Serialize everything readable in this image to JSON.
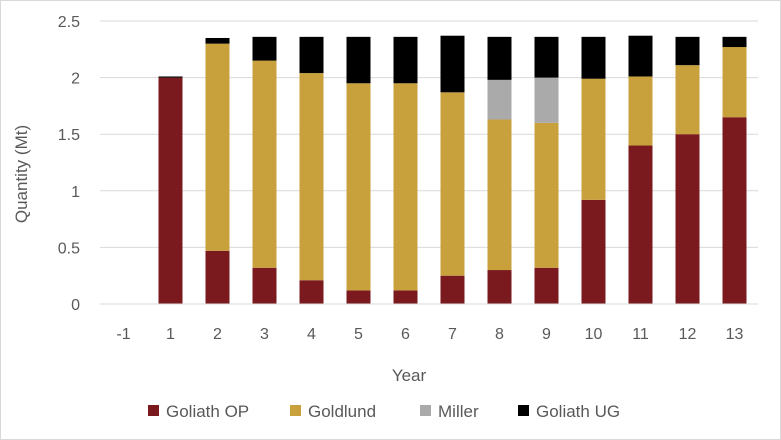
{
  "chart_data": {
    "type": "bar",
    "stacked": true,
    "categories": [
      "-1",
      "1",
      "2",
      "3",
      "4",
      "5",
      "6",
      "7",
      "8",
      "9",
      "10",
      "11",
      "12",
      "13"
    ],
    "series": [
      {
        "name": "Goliath OP",
        "color": "#7b1a1e",
        "values": [
          0,
          2.0,
          0.47,
          0.32,
          0.21,
          0.12,
          0.12,
          0.25,
          0.3,
          0.32,
          0.92,
          1.4,
          1.5,
          1.65
        ]
      },
      {
        "name": "Goldlund",
        "color": "#c8a03c",
        "values": [
          0,
          0,
          1.83,
          1.83,
          1.83,
          1.83,
          1.83,
          1.62,
          1.33,
          1.28,
          1.07,
          0.61,
          0.61,
          0.62
        ]
      },
      {
        "name": "Miller",
        "color": "#aaaaaa",
        "values": [
          0,
          0,
          0,
          0,
          0,
          0,
          0,
          0,
          0.35,
          0.4,
          0,
          0,
          0,
          0
        ]
      },
      {
        "name": "Goliath UG",
        "color": "#000000",
        "values": [
          0,
          0.01,
          0.05,
          0.21,
          0.32,
          0.41,
          0.41,
          0.5,
          0.38,
          0.36,
          0.37,
          0.36,
          0.25,
          0.09
        ]
      }
    ],
    "xlabel": "Year",
    "ylabel": "Quantity (Mt)",
    "ylim": [
      0,
      2.5
    ],
    "yticks": [
      "0",
      "0.5",
      "1",
      "1.5",
      "2",
      "2.5"
    ],
    "ytick_values": [
      0,
      0.5,
      1,
      1.5,
      2,
      2.5
    ],
    "grid": true,
    "legend_position": "bottom"
  }
}
